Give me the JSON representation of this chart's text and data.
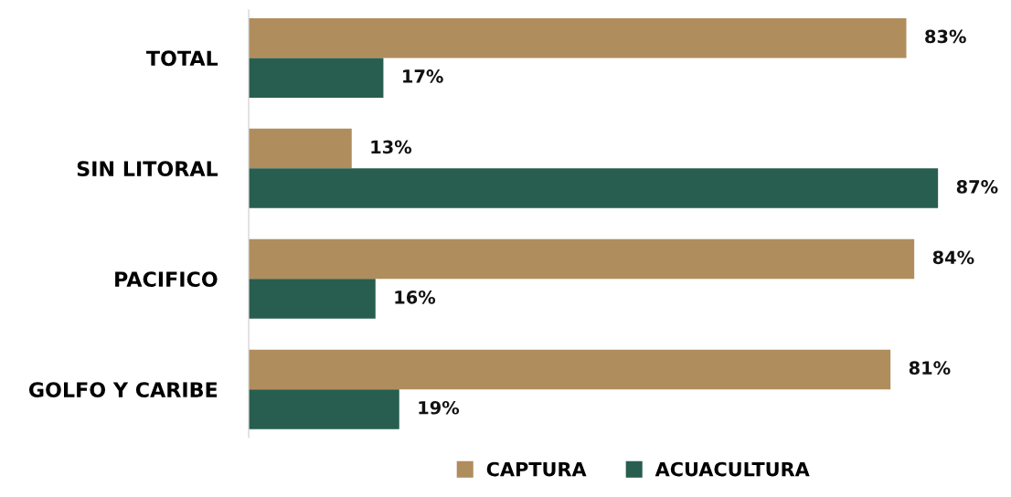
{
  "chart_data": {
    "type": "bar",
    "orientation": "horizontal",
    "categories": [
      "TOTAL",
      "SIN LITORAL",
      "PACIFICO",
      "GOLFO Y CARIBE"
    ],
    "series": [
      {
        "name": "CAPTURA",
        "color": "#b08d5c",
        "values": [
          83,
          13,
          84,
          81
        ],
        "value_labels": [
          "83%",
          "13%",
          "84%",
          "81%"
        ]
      },
      {
        "name": "ACUACULTURA",
        "color": "#285e4f",
        "values": [
          17,
          87,
          16,
          19
        ],
        "value_labels": [
          "17%",
          "87%",
          "16%",
          "19%"
        ]
      }
    ],
    "legend": "bottom",
    "grid": false
  }
}
